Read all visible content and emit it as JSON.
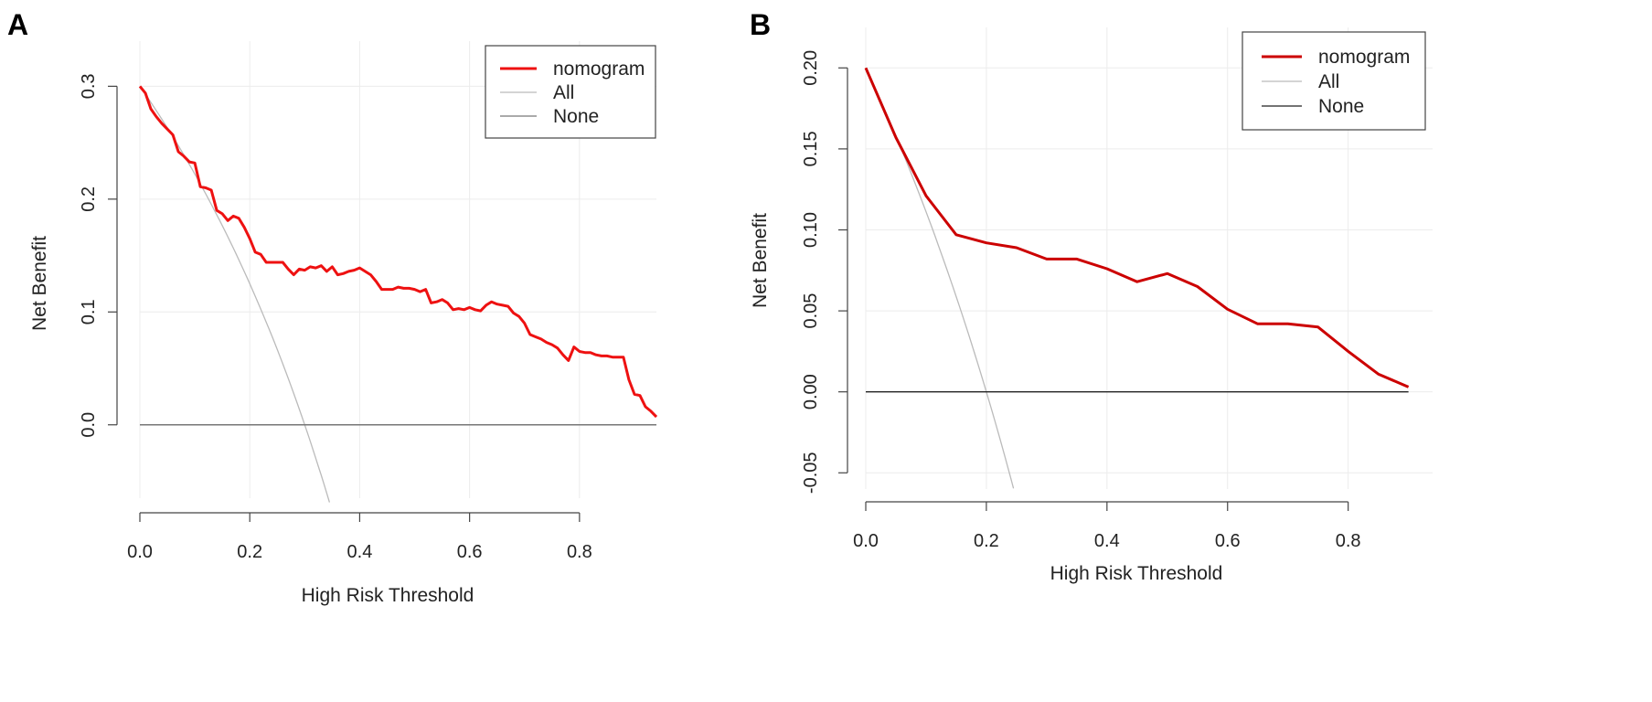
{
  "colors": {
    "nomogram_a": "#ee1111",
    "nomogram_b": "#cc0000",
    "all": "#bbbbbb",
    "none_a": "#777777",
    "none_b": "#222222",
    "grid": "#ececec",
    "axis": "#444444"
  },
  "chart_data": [
    {
      "panel_label": "A",
      "type": "line",
      "title": "",
      "xlabel": "High Risk Threshold",
      "ylabel": "Net Benefit",
      "xlim": [
        0,
        0.94
      ],
      "ylim": [
        -0.065,
        0.34
      ],
      "x_axis_max": 0.8,
      "y_axis_range": [
        0,
        0.3
      ],
      "xticks": [
        0,
        0.2,
        0.4,
        0.6,
        0.8
      ],
      "xtick_labels": [
        "0.0",
        "0.2",
        "0.4",
        "0.6",
        "0.8"
      ],
      "yticks": [
        0,
        0.1,
        0.2,
        0.3
      ],
      "ytick_labels": [
        "0.0",
        "0.1",
        "0.2",
        "0.3"
      ],
      "grid": true,
      "legend": {
        "position": "top-right",
        "entries": [
          "nomogram",
          "All",
          "None"
        ]
      },
      "series": [
        {
          "name": "nomogram",
          "color_key": "nomogram_a",
          "x": [
            0,
            0.01,
            0.02,
            0.03,
            0.04,
            0.05,
            0.06,
            0.07,
            0.08,
            0.09,
            0.1,
            0.11,
            0.12,
            0.13,
            0.14,
            0.15,
            0.16,
            0.17,
            0.18,
            0.19,
            0.2,
            0.21,
            0.22,
            0.23,
            0.24,
            0.25,
            0.26,
            0.27,
            0.28,
            0.29,
            0.3,
            0.31,
            0.32,
            0.33,
            0.34,
            0.35,
            0.36,
            0.37,
            0.38,
            0.39,
            0.4,
            0.41,
            0.42,
            0.43,
            0.44,
            0.45,
            0.46,
            0.47,
            0.48,
            0.49,
            0.5,
            0.51,
            0.52,
            0.53,
            0.54,
            0.55,
            0.56,
            0.57,
            0.58,
            0.59,
            0.6,
            0.61,
            0.62,
            0.63,
            0.64,
            0.65,
            0.66,
            0.67,
            0.68,
            0.69,
            0.7,
            0.71,
            0.72,
            0.73,
            0.74,
            0.75,
            0.76,
            0.77,
            0.78,
            0.79,
            0.8,
            0.81,
            0.82,
            0.83,
            0.84,
            0.85,
            0.86,
            0.87,
            0.88,
            0.89,
            0.9,
            0.91,
            0.92,
            0.93,
            0.94
          ],
          "y": [
            0.3,
            0.294,
            0.28,
            0.273,
            0.267,
            0.262,
            0.257,
            0.242,
            0.238,
            0.233,
            0.232,
            0.211,
            0.21,
            0.208,
            0.19,
            0.187,
            0.181,
            0.185,
            0.183,
            0.175,
            0.165,
            0.153,
            0.151,
            0.144,
            0.144,
            0.144,
            0.144,
            0.138,
            0.133,
            0.138,
            0.137,
            0.14,
            0.139,
            0.141,
            0.136,
            0.14,
            0.133,
            0.134,
            0.136,
            0.137,
            0.139,
            0.136,
            0.133,
            0.127,
            0.12,
            0.12,
            0.12,
            0.122,
            0.121,
            0.121,
            0.12,
            0.118,
            0.12,
            0.108,
            0.109,
            0.111,
            0.108,
            0.102,
            0.103,
            0.102,
            0.104,
            0.102,
            0.101,
            0.106,
            0.109,
            0.107,
            0.106,
            0.105,
            0.099,
            0.096,
            0.09,
            0.08,
            0.078,
            0.076,
            0.073,
            0.071,
            0.068,
            0.062,
            0.057,
            0.069,
            0.065,
            0.064,
            0.064,
            0.062,
            0.061,
            0.061,
            0.06,
            0.06,
            0.06,
            0.04,
            0.027,
            0.026,
            0.016,
            0.012,
            0.007
          ]
        },
        {
          "name": "All",
          "color_key": "all",
          "x": [
            0,
            0.345
          ],
          "prevalence": 0.3
        },
        {
          "name": "None",
          "color_key": "none_a",
          "x": [
            0,
            0.94
          ],
          "y": [
            0,
            0
          ]
        }
      ]
    },
    {
      "panel_label": "B",
      "type": "line",
      "title": "",
      "xlabel": "High Risk Threshold",
      "ylabel": "Net Benefit",
      "xlim": [
        0,
        0.94
      ],
      "ylim": [
        -0.06,
        0.225
      ],
      "x_axis_max": 0.8,
      "y_axis_range": [
        -0.05,
        0.2
      ],
      "xticks": [
        0,
        0.2,
        0.4,
        0.6,
        0.8
      ],
      "xtick_labels": [
        "0.0",
        "0.2",
        "0.4",
        "0.6",
        "0.8"
      ],
      "yticks": [
        -0.05,
        0,
        0.05,
        0.1,
        0.15,
        0.2
      ],
      "ytick_labels": [
        "-0.05",
        "0.00",
        "0.05",
        "0.10",
        "0.15",
        "0.20"
      ],
      "grid": true,
      "legend": {
        "position": "top-right",
        "entries": [
          "nomogram",
          "All",
          "None"
        ]
      },
      "series": [
        {
          "name": "nomogram",
          "color_key": "nomogram_b",
          "x": [
            0,
            0.05,
            0.1,
            0.15,
            0.2,
            0.25,
            0.3,
            0.35,
            0.4,
            0.45,
            0.5,
            0.55,
            0.6,
            0.65,
            0.7,
            0.75,
            0.8,
            0.85,
            0.9
          ],
          "y": [
            0.2,
            0.157,
            0.121,
            0.097,
            0.092,
            0.089,
            0.082,
            0.082,
            0.076,
            0.068,
            0.073,
            0.065,
            0.051,
            0.042,
            0.042,
            0.04,
            0.025,
            0.011,
            0.003
          ]
        },
        {
          "name": "All",
          "color_key": "all",
          "x": [
            0,
            0.245
          ],
          "prevalence": 0.2
        },
        {
          "name": "None",
          "color_key": "none_b",
          "x": [
            0,
            0.9
          ],
          "y": [
            0,
            0
          ]
        }
      ]
    }
  ]
}
